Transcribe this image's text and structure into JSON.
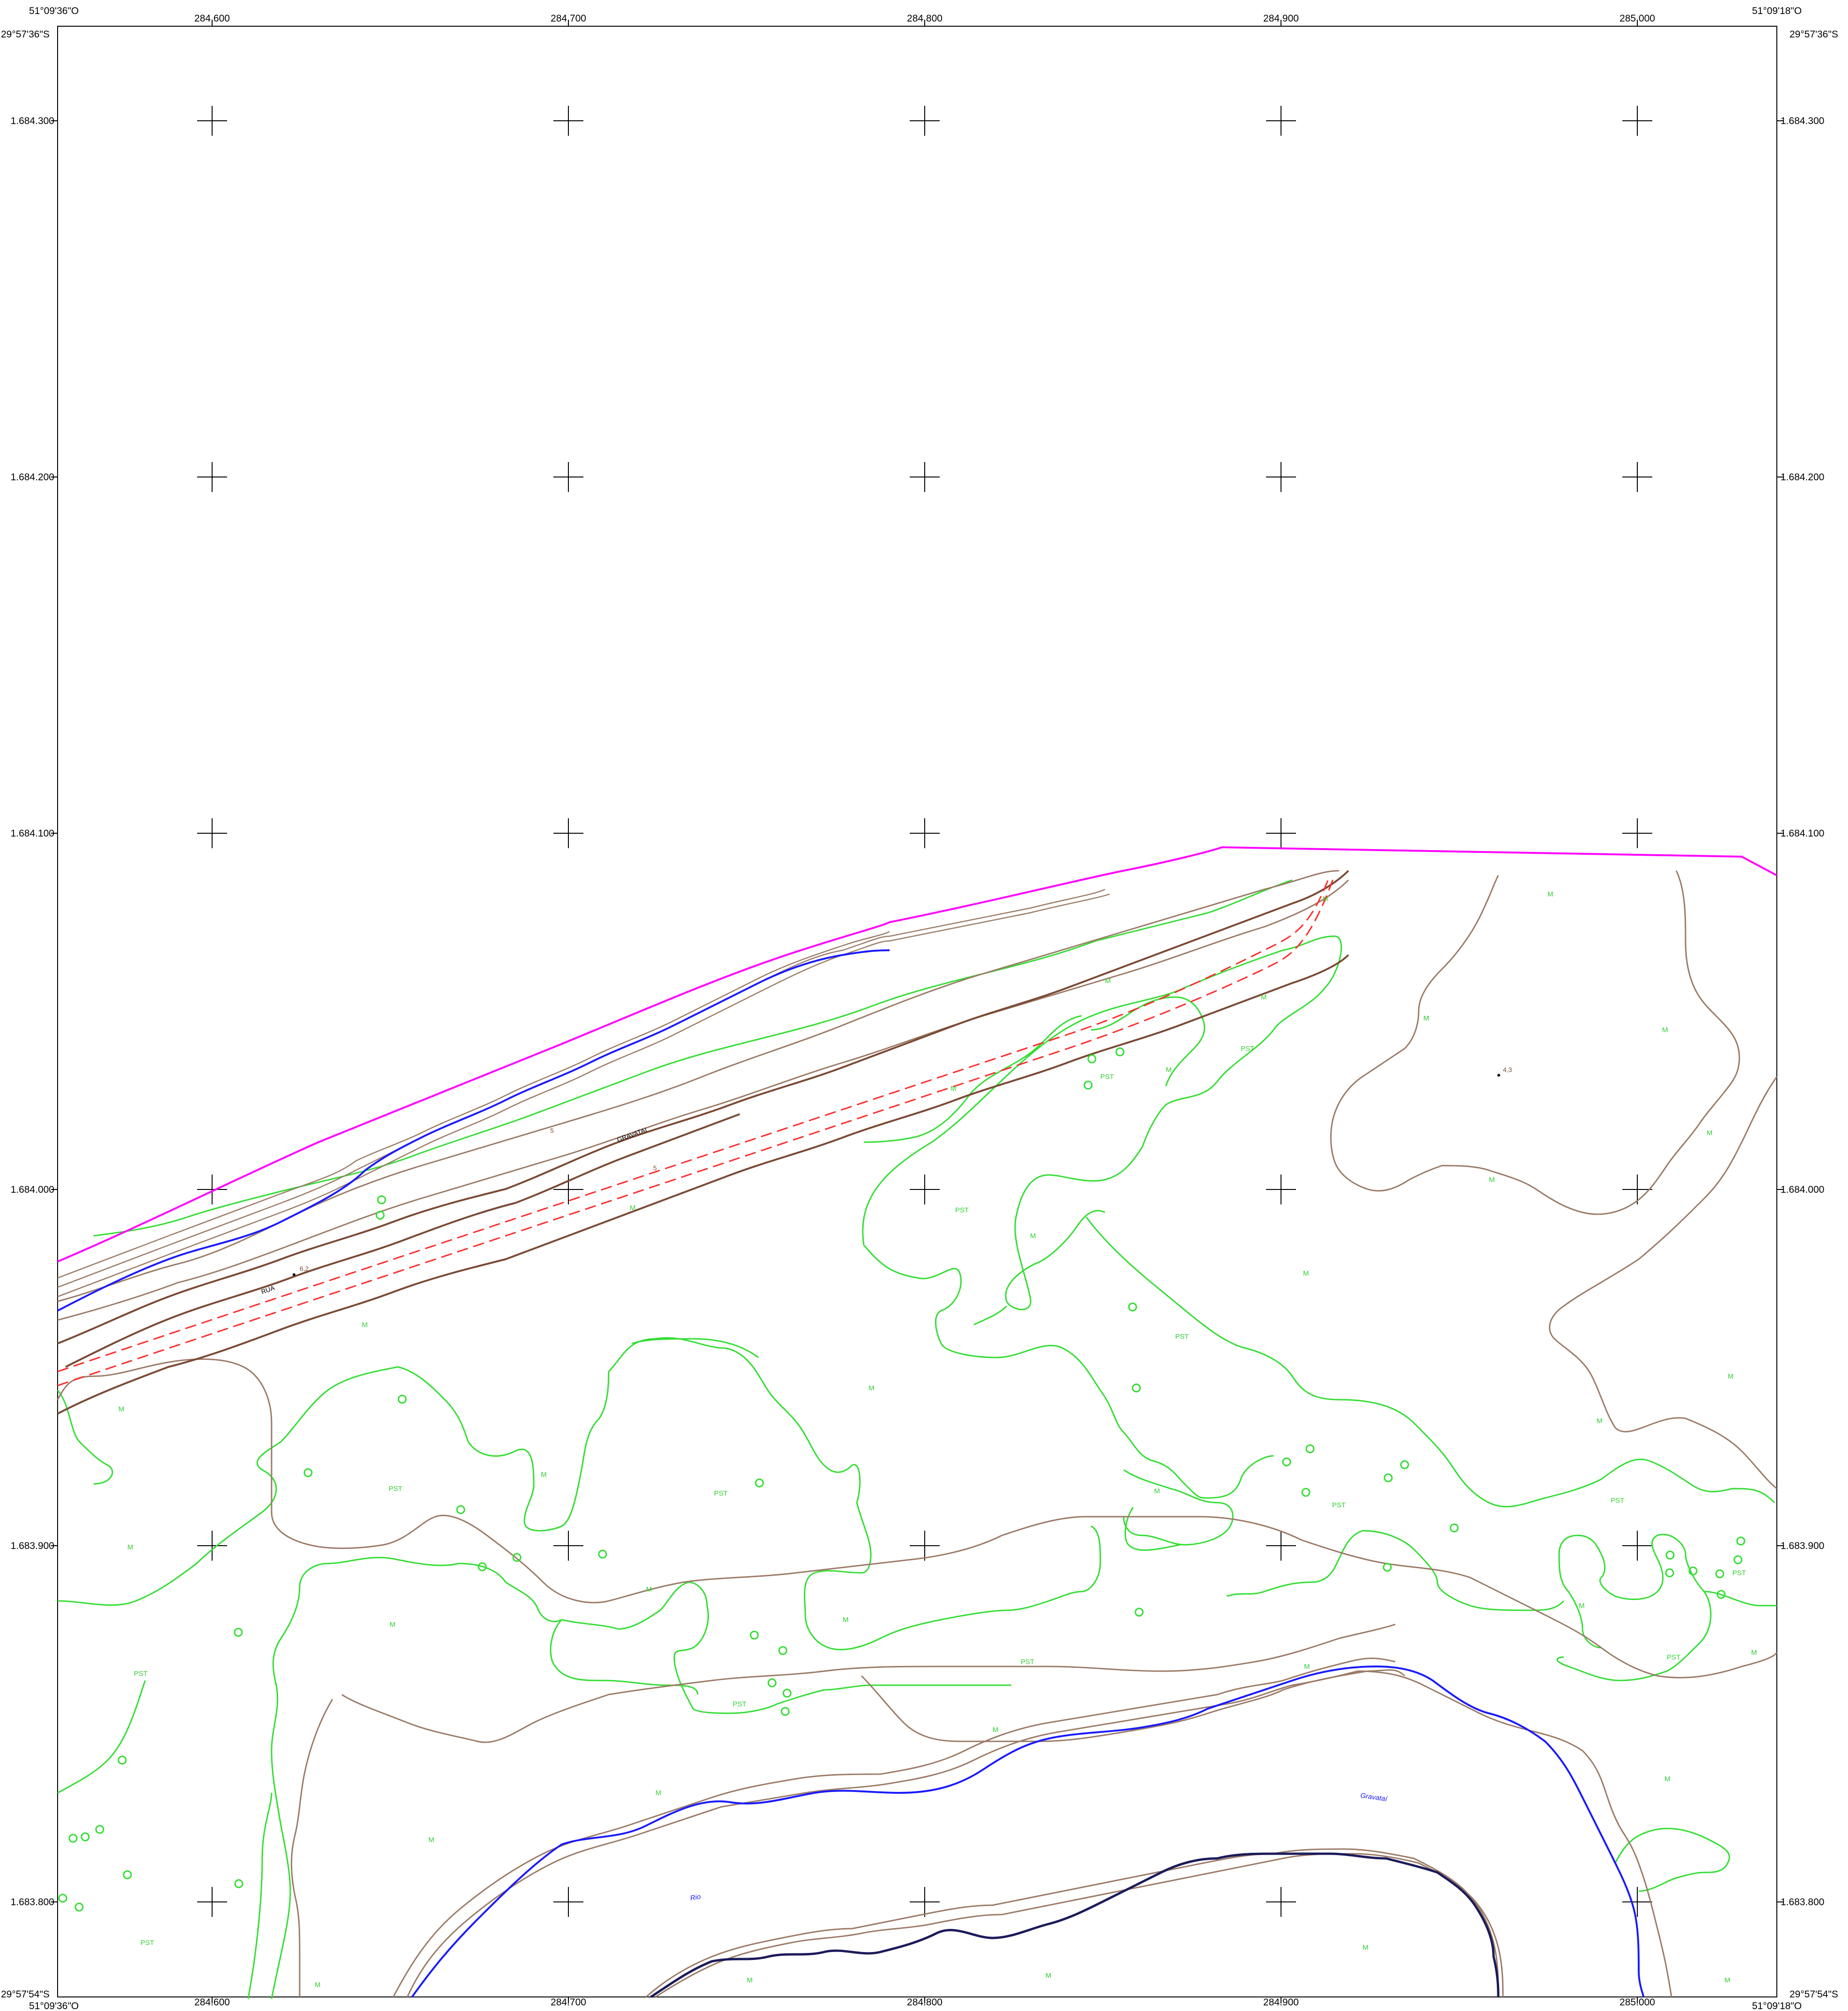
{
  "corners": {
    "tl_lon": "51°09'36\"O",
    "tr_lon": "51°09'18\"O",
    "bl_lon": "51°09'36\"O",
    "br_lon": "51°09'18\"O",
    "tl_lat": "29°57'36\"S",
    "tr_lat": "29°57'36\"S",
    "bl_lat": "29°57'54\"S",
    "br_lat": "29°57'54\"S"
  },
  "easting": [
    "284.600",
    "284.700",
    "284.800",
    "284.900",
    "285.000"
  ],
  "northing": [
    "1.684.300",
    "1.684.200",
    "1.684.100",
    "1.684.000",
    "1.683.900",
    "1.683.800"
  ],
  "streets": {
    "rua": "RUA",
    "gravatai": "GRAVATAI"
  },
  "hydro": {
    "rio": "Rio",
    "gravatai": "Gravataí"
  },
  "spot_heights": {
    "a": "6,2",
    "b": "4,3"
  },
  "contour_values": {
    "c1": "5",
    "c2": "5"
  },
  "veg_codes": {
    "M": "M",
    "PST": "PST"
  },
  "colors": {
    "contour": "#9b7a66",
    "contour_index": "#7a4a35",
    "vegetation": "#33dd33",
    "river": "#1a1aff",
    "boundary": "#ff00ff",
    "street": "#ff2a2a",
    "grid": "#000000"
  }
}
